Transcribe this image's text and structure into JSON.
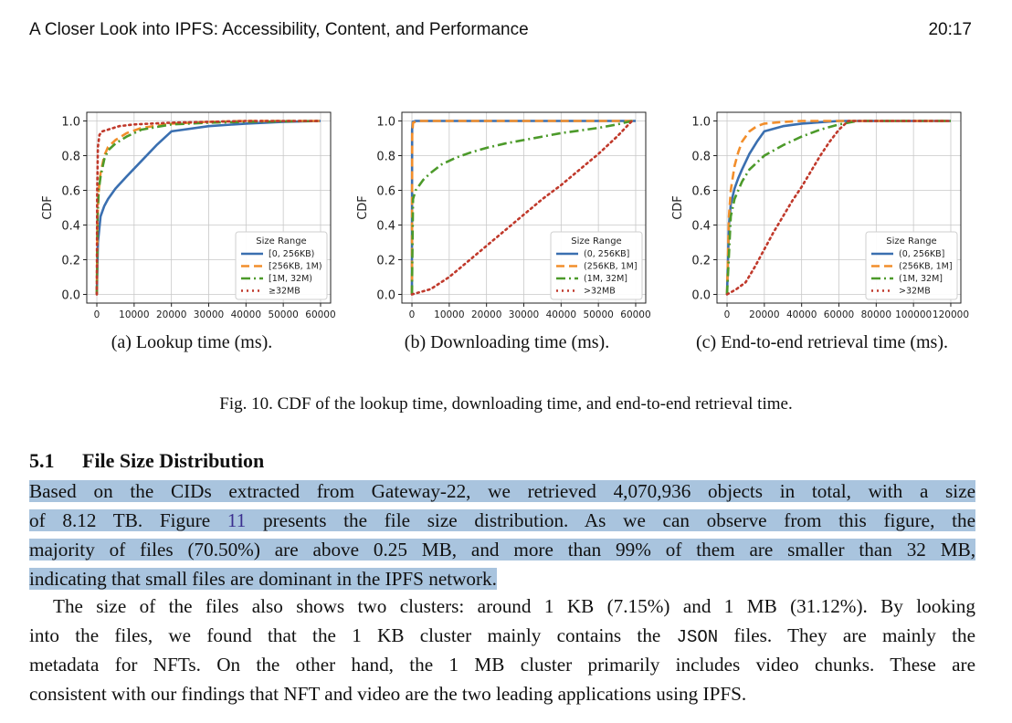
{
  "running_head": {
    "title": "A Closer Look into IPFS: Accessibility, Content, and Performance",
    "page": "20:17"
  },
  "figure": {
    "caption": "Fig. 10.  CDF of the lookup time, downloading time, and end-to-end retrieval time."
  },
  "chart_data": [
    {
      "type": "line",
      "caption": "(a) Lookup time (ms).",
      "ylabel": "CDF",
      "xlim": [
        0,
        60000
      ],
      "ylim": [
        0,
        1.0
      ],
      "xticks": [
        "0",
        "10000",
        "20000",
        "30000",
        "40000",
        "50000",
        "60000"
      ],
      "yticks": [
        "0.0",
        "0.2",
        "0.4",
        "0.6",
        "0.8",
        "1.0"
      ],
      "grid": true,
      "legend": {
        "title": "Size Range",
        "placement": "lower-right"
      },
      "series": [
        {
          "name": "[0, 256KB)",
          "color": "#3a6fb0",
          "dash": "solid",
          "x": [
            0,
            300,
            1000,
            2000,
            3000,
            5000,
            8000,
            12000,
            16000,
            20000,
            30000,
            40000,
            50000,
            60000
          ],
          "y": [
            0,
            0.3,
            0.45,
            0.51,
            0.55,
            0.61,
            0.68,
            0.77,
            0.86,
            0.94,
            0.97,
            0.985,
            0.995,
            1.0
          ]
        },
        {
          "name": "[256KB, 1M)",
          "color": "#f28e2b",
          "dash": "dashed",
          "x": [
            0,
            200,
            500,
            1000,
            2000,
            3000,
            5000,
            8000,
            12000,
            20000,
            30000,
            40000,
            60000
          ],
          "y": [
            0,
            0.45,
            0.6,
            0.7,
            0.8,
            0.85,
            0.89,
            0.93,
            0.96,
            0.985,
            0.995,
            1.0,
            1.0
          ]
        },
        {
          "name": "[1M, 32M)",
          "color": "#4c9a2a",
          "dash": "dashdot",
          "x": [
            0,
            200,
            500,
            1000,
            2000,
            3000,
            5000,
            8000,
            12000,
            20000,
            30000,
            40000,
            60000
          ],
          "y": [
            0,
            0.45,
            0.6,
            0.68,
            0.78,
            0.83,
            0.87,
            0.91,
            0.95,
            0.98,
            0.99,
            0.995,
            1.0
          ]
        },
        {
          "name": "≥32MB",
          "color": "#c0392b",
          "dash": "dotted",
          "x": [
            0,
            100,
            300,
            700,
            1500,
            3000,
            6000,
            10000,
            20000,
            40000,
            60000
          ],
          "y": [
            0,
            0.6,
            0.85,
            0.92,
            0.94,
            0.95,
            0.97,
            0.98,
            0.99,
            1.0,
            1.0
          ]
        }
      ]
    },
    {
      "type": "line",
      "caption": "(b) Downloading time (ms).",
      "ylabel": "CDF",
      "xlim": [
        0,
        60000
      ],
      "ylim": [
        0,
        1.0
      ],
      "xticks": [
        "0",
        "10000",
        "20000",
        "30000",
        "40000",
        "50000",
        "60000"
      ],
      "yticks": [
        "0.0",
        "0.2",
        "0.4",
        "0.6",
        "0.8",
        "1.0"
      ],
      "grid": true,
      "legend": {
        "title": "Size Range",
        "placement": "lower-right"
      },
      "series": [
        {
          "name": "(0, 256KB]",
          "color": "#3a6fb0",
          "dash": "solid",
          "x": [
            0,
            50,
            200,
            1000,
            60000
          ],
          "y": [
            0,
            0.95,
            0.995,
            1.0,
            1.0
          ]
        },
        {
          "name": "(256KB, 1M]",
          "color": "#f28e2b",
          "dash": "dashed",
          "x": [
            0,
            60,
            300,
            1500,
            60000
          ],
          "y": [
            0,
            0.92,
            0.99,
            1.0,
            1.0
          ]
        },
        {
          "name": "(1M, 32M]",
          "color": "#4c9a2a",
          "dash": "dashdot",
          "x": [
            0,
            300,
            1000,
            3000,
            5000,
            8000,
            12000,
            16000,
            20000,
            25000,
            30000,
            35000,
            40000,
            45000,
            50000,
            55000,
            59000
          ],
          "y": [
            0,
            0.55,
            0.6,
            0.66,
            0.7,
            0.75,
            0.79,
            0.82,
            0.845,
            0.87,
            0.89,
            0.91,
            0.93,
            0.945,
            0.96,
            0.98,
            1.0
          ]
        },
        {
          "name": ">32MB",
          "color": "#c0392b",
          "dash": "dotted",
          "x": [
            0,
            5000,
            10000,
            15000,
            20000,
            25000,
            30000,
            35000,
            40000,
            45000,
            50000,
            55000,
            59000
          ],
          "y": [
            0,
            0.03,
            0.1,
            0.19,
            0.28,
            0.37,
            0.46,
            0.55,
            0.63,
            0.72,
            0.81,
            0.91,
            1.0
          ]
        }
      ]
    },
    {
      "type": "line",
      "caption": "(c) End-to-end retrieval time (ms).",
      "ylabel": "CDF",
      "xlim": [
        0,
        120000
      ],
      "ylim": [
        0,
        1.0
      ],
      "xticks": [
        "0",
        "20000",
        "40000",
        "60000",
        "80000",
        "100000",
        "120000"
      ],
      "yticks": [
        "0.0",
        "0.2",
        "0.4",
        "0.6",
        "0.8",
        "1.0"
      ],
      "grid": true,
      "legend": {
        "title": "Size Range",
        "placement": "lower-right"
      },
      "series": [
        {
          "name": "(0, 256KB]",
          "color": "#3a6fb0",
          "dash": "solid",
          "x": [
            0,
            1000,
            2000,
            4000,
            6000,
            8000,
            12000,
            16000,
            20000,
            30000,
            40000,
            60000,
            120000
          ],
          "y": [
            0,
            0.4,
            0.52,
            0.61,
            0.67,
            0.72,
            0.81,
            0.88,
            0.94,
            0.97,
            0.985,
            1.0,
            1.0
          ]
        },
        {
          "name": "(256KB, 1M]",
          "color": "#f28e2b",
          "dash": "dashed",
          "x": [
            0,
            1000,
            2000,
            4000,
            6000,
            8000,
            12000,
            16000,
            20000,
            30000,
            40000,
            120000
          ],
          "y": [
            0,
            0.45,
            0.6,
            0.74,
            0.82,
            0.88,
            0.94,
            0.97,
            0.985,
            0.995,
            1.0,
            1.0
          ]
        },
        {
          "name": "(1M, 32M]",
          "color": "#4c9a2a",
          "dash": "dashdot",
          "x": [
            0,
            2000,
            4000,
            8000,
            12000,
            20000,
            30000,
            40000,
            50000,
            60000,
            70000,
            120000
          ],
          "y": [
            0,
            0.45,
            0.55,
            0.65,
            0.72,
            0.8,
            0.86,
            0.91,
            0.95,
            0.98,
            1.0,
            1.0
          ]
        },
        {
          "name": ">32MB",
          "color": "#c0392b",
          "dash": "dotted",
          "x": [
            0,
            5000,
            10000,
            15000,
            20000,
            25000,
            30000,
            35000,
            40000,
            45000,
            50000,
            55000,
            60000,
            65000,
            120000
          ],
          "y": [
            0,
            0.03,
            0.07,
            0.16,
            0.26,
            0.36,
            0.45,
            0.54,
            0.62,
            0.71,
            0.8,
            0.88,
            0.95,
            1.0,
            1.0
          ]
        }
      ]
    }
  ],
  "section": {
    "number": "5.1",
    "title": "File Size Distribution",
    "p1": [
      "Based on the CIDs extracted from Gateway-22, we retrieved 4,070,936 objects in total, with a size",
      [
        "of 8.12 TB.  Figure ",
        "11",
        " presents the file size distribution. As we can observe from this figure, the"
      ],
      "majority of files (70.50%) are above 0.25 MB, and more than 99% of them are smaller than 32 MB,",
      "indicating that small files are dominant in the IPFS network."
    ],
    "p2": [
      "The size of the files also shows two clusters: around 1 KB (7.15%) and 1 MB (31.12%). By looking",
      [
        "into the files, we found that the 1 KB cluster mainly contains the ",
        "JSON",
        " files. They are mainly the"
      ],
      "metadata for NFTs. On the other hand, the 1 MB cluster primarily includes video chunks. These are",
      "consistent with our findings that NFT and video are the two leading applications using IPFS."
    ]
  }
}
